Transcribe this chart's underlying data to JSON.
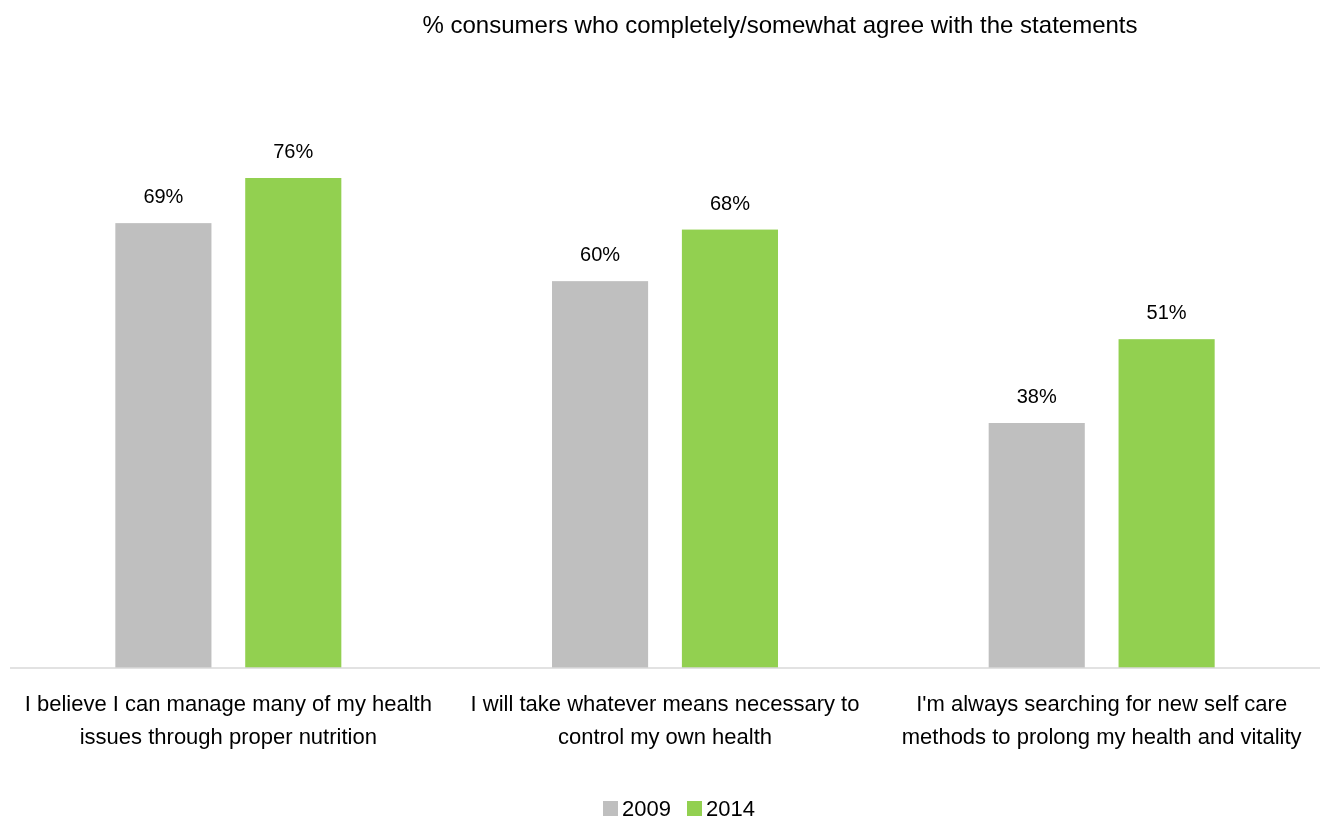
{
  "chart_data": {
    "type": "bar",
    "title": "% consumers who completely/somewhat agree with the statements",
    "categories": [
      "I believe I can manage many of my health issues through proper nutrition",
      "I will take whatever means necessary to control my own health",
      "I'm always searching for new self care methods to prolong my health and vitality"
    ],
    "series": [
      {
        "name": "2009",
        "color": "#bfbfbf",
        "values": [
          69,
          60,
          38
        ],
        "value_labels": [
          "69%",
          "60%",
          "38%"
        ]
      },
      {
        "name": "2014",
        "color": "#92d050",
        "values": [
          76,
          68,
          51
        ],
        "value_labels": [
          "76%",
          "68%",
          "51%"
        ]
      }
    ],
    "legend": "bottom",
    "relative": false
  }
}
